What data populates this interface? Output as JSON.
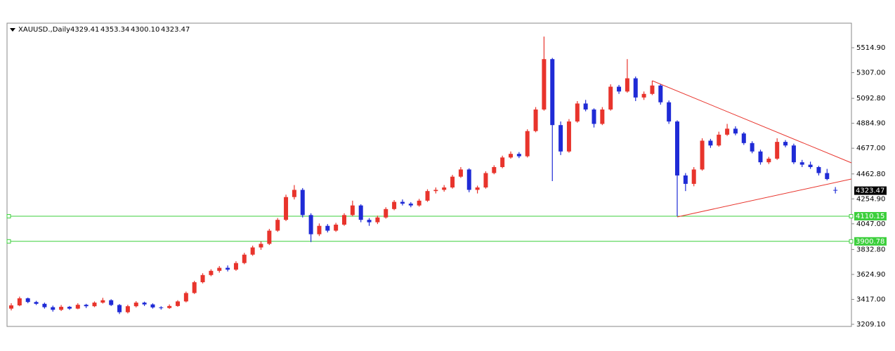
{
  "chart_data": {
    "type": "candlestick",
    "title": "XAUUSD.,Daily",
    "title_ohlc_labels": [
      "4329.41",
      "4353.34",
      "4300.10",
      "4323.47"
    ],
    "up_color": "#e8342c",
    "down_color": "#1f2bd6",
    "ylim": [
      3191.5,
      5719.7
    ],
    "yticks": [
      {
        "value": 5514.9,
        "label": "5514.90"
      },
      {
        "value": 5307,
        "label": "5307.00"
      },
      {
        "value": 5092.8,
        "label": "5092.80"
      },
      {
        "value": 4884.9,
        "label": "4884.90"
      },
      {
        "value": 4677,
        "label": "4677.00"
      },
      {
        "value": 4462.8,
        "label": "4462.80"
      },
      {
        "value": 4254.9,
        "label": "4254.90"
      },
      {
        "value": 4047,
        "label": "4047.00"
      },
      {
        "value": 3832.8,
        "label": "3832.80"
      },
      {
        "value": 3624.9,
        "label": "3624.90"
      },
      {
        "value": 3417,
        "label": "3417.00"
      },
      {
        "value": 3209.1,
        "label": "3209.10"
      }
    ],
    "hlines": [
      4110.15,
      3900.78
    ],
    "hline_color": "#3ccf3c",
    "trendlines": [
      {
        "x": [
          77,
          101
        ],
        "y": [
          5239.9,
          4555.2
        ]
      },
      {
        "x": [
          80,
          101
        ],
        "y": [
          4104.6,
          4420.6
        ]
      }
    ],
    "trendline_color": "#e8342c",
    "candles": [
      [
        3340,
        3385,
        3325,
        3367
      ],
      [
        3367,
        3440,
        3360,
        3426
      ],
      [
        3426,
        3432,
        3385,
        3395
      ],
      [
        3395,
        3405,
        3370,
        3380
      ],
      [
        3380,
        3390,
        3340,
        3352
      ],
      [
        3352,
        3365,
        3315,
        3330
      ],
      [
        3330,
        3370,
        3320,
        3355
      ],
      [
        3355,
        3362,
        3330,
        3340
      ],
      [
        3340,
        3385,
        3335,
        3372
      ],
      [
        3372,
        3380,
        3345,
        3360
      ],
      [
        3360,
        3400,
        3352,
        3390
      ],
      [
        3390,
        3430,
        3382,
        3410
      ],
      [
        3410,
        3418,
        3362,
        3370
      ],
      [
        3370,
        3378,
        3295,
        3310
      ],
      [
        3310,
        3372,
        3300,
        3360
      ],
      [
        3360,
        3402,
        3350,
        3390
      ],
      [
        3390,
        3398,
        3362,
        3375
      ],
      [
        3375,
        3384,
        3340,
        3350
      ],
      [
        3350,
        3360,
        3332,
        3345
      ],
      [
        3345,
        3375,
        3338,
        3362
      ],
      [
        3362,
        3410,
        3355,
        3400
      ],
      [
        3400,
        3482,
        3392,
        3470
      ],
      [
        3470,
        3572,
        3462,
        3560
      ],
      [
        3560,
        3635,
        3550,
        3620
      ],
      [
        3620,
        3668,
        3610,
        3655
      ],
      [
        3655,
        3695,
        3640,
        3680
      ],
      [
        3680,
        3700,
        3650,
        3665
      ],
      [
        3665,
        3735,
        3655,
        3720
      ],
      [
        3720,
        3805,
        3710,
        3790
      ],
      [
        3790,
        3865,
        3780,
        3850
      ],
      [
        3850,
        3900,
        3830,
        3880
      ],
      [
        3880,
        4005,
        3870,
        3990
      ],
      [
        3990,
        4095,
        3980,
        4080
      ],
      [
        4080,
        4290,
        4070,
        4270
      ],
      [
        4270,
        4370,
        4250,
        4330
      ],
      [
        4330,
        4345,
        4100,
        4120
      ],
      [
        4120,
        4135,
        3895,
        3960
      ],
      [
        3960,
        4050,
        3945,
        4030
      ],
      [
        4030,
        4045,
        3975,
        3990
      ],
      [
        3990,
        4055,
        3980,
        4040
      ],
      [
        4040,
        4135,
        4030,
        4120
      ],
      [
        4120,
        4240,
        4110,
        4200
      ],
      [
        4200,
        4210,
        4060,
        4080
      ],
      [
        4080,
        4095,
        4030,
        4060
      ],
      [
        4060,
        4115,
        4045,
        4100
      ],
      [
        4100,
        4185,
        4090,
        4170
      ],
      [
        4170,
        4245,
        4160,
        4230
      ],
      [
        4230,
        4250,
        4200,
        4215
      ],
      [
        4215,
        4228,
        4185,
        4200
      ],
      [
        4200,
        4255,
        4190,
        4240
      ],
      [
        4240,
        4335,
        4230,
        4320
      ],
      [
        4320,
        4350,
        4300,
        4330
      ],
      [
        4330,
        4370,
        4315,
        4350
      ],
      [
        4350,
        4455,
        4340,
        4440
      ],
      [
        4440,
        4520,
        4430,
        4500
      ],
      [
        4500,
        4510,
        4310,
        4330
      ],
      [
        4330,
        4365,
        4300,
        4350
      ],
      [
        4350,
        4485,
        4340,
        4470
      ],
      [
        4470,
        4535,
        4460,
        4520
      ],
      [
        4520,
        4615,
        4510,
        4600
      ],
      [
        4600,
        4650,
        4590,
        4630
      ],
      [
        4630,
        4645,
        4595,
        4610
      ],
      [
        4610,
        4835,
        4600,
        4820
      ],
      [
        4820,
        5020,
        4810,
        5000
      ],
      [
        5000,
        5608,
        4990,
        5420
      ],
      [
        5420,
        5430,
        4403,
        4870
      ],
      [
        4870,
        4900,
        4620,
        4650
      ],
      [
        4650,
        4920,
        4640,
        4900
      ],
      [
        4900,
        5070,
        4890,
        5050
      ],
      [
        5050,
        5080,
        4985,
        5000
      ],
      [
        5000,
        5010,
        4850,
        4880
      ],
      [
        4880,
        5020,
        4870,
        5000
      ],
      [
        5000,
        5210,
        4990,
        5190
      ],
      [
        5190,
        5205,
        5130,
        5150
      ],
      [
        5150,
        5420,
        5140,
        5260
      ],
      [
        5260,
        5275,
        5070,
        5100
      ],
      [
        5100,
        5150,
        5080,
        5130
      ],
      [
        5130,
        5240,
        5120,
        5200
      ],
      [
        5200,
        5210,
        5040,
        5060
      ],
      [
        5060,
        5075,
        4880,
        4900
      ],
      [
        4900,
        4910,
        4110,
        4450
      ],
      [
        4450,
        4470,
        4320,
        4380
      ],
      [
        4380,
        4520,
        4360,
        4500
      ],
      [
        4500,
        4760,
        4490,
        4740
      ],
      [
        4740,
        4755,
        4680,
        4700
      ],
      [
        4700,
        4815,
        4690,
        4790
      ],
      [
        4790,
        4880,
        4780,
        4840
      ],
      [
        4840,
        4860,
        4785,
        4800
      ],
      [
        4800,
        4812,
        4705,
        4720
      ],
      [
        4720,
        4735,
        4635,
        4650
      ],
      [
        4650,
        4665,
        4540,
        4560
      ],
      [
        4560,
        4605,
        4545,
        4590
      ],
      [
        4590,
        4760,
        4580,
        4730
      ],
      [
        4730,
        4745,
        4685,
        4700
      ],
      [
        4700,
        4715,
        4545,
        4560
      ],
      [
        4560,
        4580,
        4520,
        4540
      ],
      [
        4540,
        4565,
        4505,
        4520
      ],
      [
        4520,
        4530,
        4450,
        4470
      ],
      [
        4470,
        4505,
        4410,
        4420
      ],
      [
        4329.41,
        4353.34,
        4300.1,
        4323.47
      ]
    ]
  }
}
